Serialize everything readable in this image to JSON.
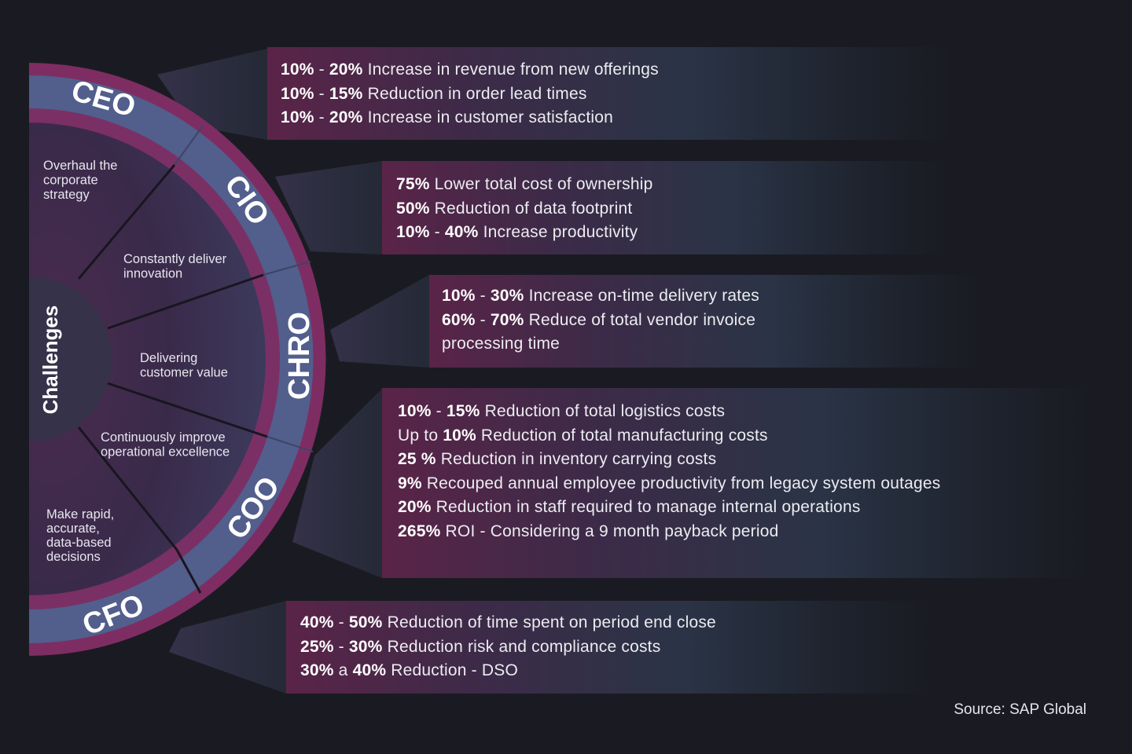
{
  "colors": {
    "background": "#1a1b22",
    "ring_outer": "#7e2d63",
    "ring_band": "#4f5a86",
    "inner_fill": "#3d2a4b",
    "panel_left": "#5a2448",
    "panel_right": "#2a3446"
  },
  "wheel": {
    "center_label": "Challenges",
    "roles": [
      "CEO",
      "CIO",
      "CHRO",
      "COO",
      "CFO"
    ],
    "challenges": [
      {
        "lines": [
          "Overhaul the",
          "corporate",
          "strategy"
        ]
      },
      {
        "lines": [
          "Constantly deliver",
          "innovation"
        ]
      },
      {
        "lines": [
          "Delivering",
          "customer value"
        ]
      },
      {
        "lines": [
          "Continuously improve",
          "operational excellence"
        ]
      },
      {
        "lines": [
          "Make rapid,",
          "accurate,",
          "data-based",
          "decisions"
        ]
      }
    ]
  },
  "panels": [
    {
      "role": "CEO",
      "lines": [
        [
          {
            "b": "10%"
          },
          {
            "t": " - "
          },
          {
            "b": "20%"
          },
          {
            "t": " Increase in revenue  from new offerings"
          }
        ],
        [
          {
            "b": "10%"
          },
          {
            "t": " - "
          },
          {
            "b": "15%"
          },
          {
            "t": " Reduction in order lead times"
          }
        ],
        [
          {
            "b": "10%"
          },
          {
            "t": " - "
          },
          {
            "b": "20%"
          },
          {
            "t": " Increase in customer satisfaction"
          }
        ]
      ]
    },
    {
      "role": "CIO",
      "lines": [
        [
          {
            "b": "75%"
          },
          {
            "t": " Lower total cost of ownership"
          }
        ],
        [
          {
            "b": "50%"
          },
          {
            "t": " Reduction of data footprint"
          }
        ],
        [
          {
            "b": "10%"
          },
          {
            "t": " - "
          },
          {
            "b": "40%"
          },
          {
            "t": " Increase productivity"
          }
        ]
      ]
    },
    {
      "role": "CHRO",
      "lines": [
        [
          {
            "b": "10%"
          },
          {
            "t": " - "
          },
          {
            "b": "30%"
          },
          {
            "t": " Increase on-time delivery rates"
          }
        ],
        [
          {
            "b": "60%"
          },
          {
            "t": " - "
          },
          {
            "b": "70%"
          },
          {
            "t": " Reduce of total vendor invoice"
          }
        ],
        [
          {
            "t": "processing time"
          }
        ]
      ]
    },
    {
      "role": "COO",
      "lines": [
        [
          {
            "b": "10%"
          },
          {
            "t": " - "
          },
          {
            "b": "15%"
          },
          {
            "t": " Reduction of total logistics costs"
          }
        ],
        [
          {
            "t": "Up to "
          },
          {
            "b": "10%"
          },
          {
            "t": " Reduction of total manufacturing costs"
          }
        ],
        [
          {
            "b": "25 %"
          },
          {
            "t": " Reduction in inventory carrying costs"
          }
        ],
        [
          {
            "b": "9%"
          },
          {
            "t": " Recouped annual employee productivity from legacy system outages"
          }
        ],
        [
          {
            "b": "20%"
          },
          {
            "t": " Reduction in staff required to manage internal operations"
          }
        ],
        [
          {
            "b": "265%"
          },
          {
            "t": " ROI - Considering a 9 month payback period"
          }
        ]
      ]
    },
    {
      "role": "CFO",
      "lines": [
        [
          {
            "b": "40%"
          },
          {
            "t": " - "
          },
          {
            "b": "50%"
          },
          {
            "t": " Reduction of time spent on period end close"
          }
        ],
        [
          {
            "b": "25%"
          },
          {
            "t": " - "
          },
          {
            "b": "30%"
          },
          {
            "t": " Reduction risk and compliance costs"
          }
        ],
        [
          {
            "b": "30%"
          },
          {
            "t": " a "
          },
          {
            "b": "40%"
          },
          {
            "t": " Reduction - DSO"
          }
        ]
      ]
    }
  ],
  "source": "Source: SAP Global"
}
